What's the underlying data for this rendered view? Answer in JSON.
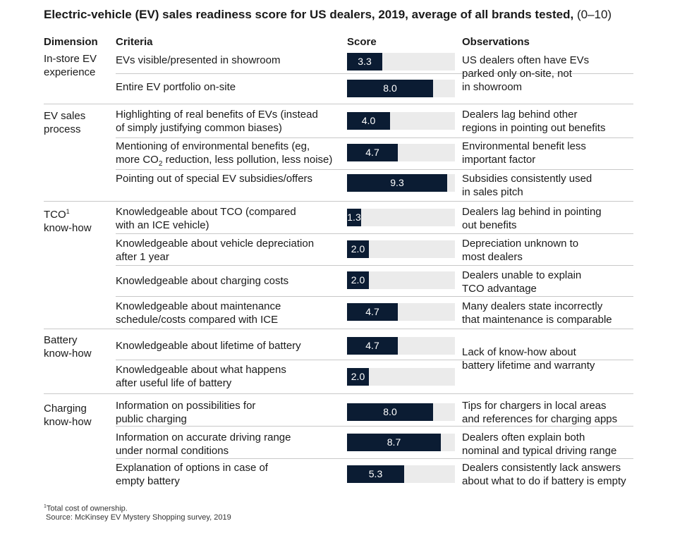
{
  "title": {
    "main": "Electric-vehicle (EV) sales readiness score for US dealers, 2019, average of all brands tested,",
    "unit": "(0–10)"
  },
  "headers": {
    "dimension": "Dimension",
    "criteria": "Criteria",
    "score": "Score",
    "observations": "Observations"
  },
  "dimensions": [
    {
      "label": "In-store EV\nexperience"
    },
    {
      "label": "EV sales\nprocess"
    },
    {
      "label": "TCO",
      "sup": "1",
      "label2": "know-how"
    },
    {
      "label": "Battery\nknow-how"
    },
    {
      "label": "Charging\nknow-how"
    }
  ],
  "rows": [
    {
      "criteria": "EVs visible/presented in showroom"
    },
    {
      "criteria": "Entire EV portfolio on-site"
    },
    {
      "criteria": "Highlighting of real benefits of EVs (instead\nof simply justifying common biases)"
    },
    {
      "criteria_a": "Mentioning of environmental benefits (eg,\nmore CO",
      "criteria_sub": "2",
      "criteria_b": " reduction, less pollution, less noise)"
    },
    {
      "criteria": "Pointing out of special EV subsidies/offers"
    },
    {
      "criteria": "Knowledgeable about TCO (compared\nwith an ICE vehicle)"
    },
    {
      "criteria": "Knowledgeable about vehicle depreciation\nafter 1 year"
    },
    {
      "criteria": "Knowledgeable about charging costs"
    },
    {
      "criteria": "Knowledgeable about maintenance\nschedule/costs compared with ICE"
    },
    {
      "criteria": "Knowledgeable about lifetime of battery"
    },
    {
      "criteria": "Knowledgeable about what happens\nafter useful life of battery"
    },
    {
      "criteria": "Information on possibilities for\npublic charging"
    },
    {
      "criteria": "Information on accurate driving range\nunder normal conditions"
    },
    {
      "criteria": "Explanation of options in case of\nempty battery"
    }
  ],
  "observations": [
    "US dealers often have EVs\nparked only on-site, not\nin showroom",
    "Dealers lag behind other\nregions in pointing out benefits",
    "Environmental benefit less\nimportant factor",
    "Subsidies consistently used\nin sales pitch",
    "Dealers lag behind in pointing\nout benefits",
    "Depreciation unknown to\nmost dealers",
    "Dealers unable to explain\nTCO advantage",
    "Many dealers state incorrectly\nthat maintenance is comparable",
    "Lack of know-how about\nbattery lifetime and warranty",
    "Tips for chargers in local areas\nand references for charging apps",
    "Dealers often explain both\nnominal and typical driving range",
    "Dealers consistently lack answers\nabout what to do if battery is empty"
  ],
  "chart_data": {
    "type": "bar",
    "orientation": "horizontal",
    "categories": [
      "EVs visible/presented in showroom",
      "Entire EV portfolio on-site",
      "Highlighting of real benefits of EVs (instead of simply justifying common biases)",
      "Mentioning of environmental benefits (eg, more CO2 reduction, less pollution, less noise)",
      "Pointing out of special EV subsidies/offers",
      "Knowledgeable about TCO (compared with an ICE vehicle)",
      "Knowledgeable about vehicle depreciation after 1 year",
      "Knowledgeable about charging costs",
      "Knowledgeable about maintenance schedule/costs compared with ICE",
      "Knowledgeable about lifetime of battery",
      "Knowledgeable about what happens after useful life of battery",
      "Information on possibilities for public charging",
      "Information on accurate driving range under normal conditions",
      "Explanation of options in case of empty battery"
    ],
    "values": [
      3.3,
      8.0,
      4.0,
      4.7,
      9.3,
      1.3,
      2.0,
      2.0,
      4.7,
      4.7,
      2.0,
      8.0,
      8.7,
      5.3
    ],
    "value_labels": [
      "3.3",
      "8.0",
      "4.0",
      "4.7",
      "9.3",
      "1.3",
      "2.0",
      "2.0",
      "4.7",
      "4.7",
      "2.0",
      "8.0",
      "8.7",
      "5.3"
    ],
    "xlim": [
      0,
      10
    ],
    "bar_color": "#0b1c33",
    "track_color": "#ebebeb",
    "grid": false,
    "legend": "none"
  },
  "footnote": {
    "sup": "1",
    "text": "Total cost of ownership.",
    "source": "Source: McKinsey EV Mystery Shopping survey, 2019"
  }
}
